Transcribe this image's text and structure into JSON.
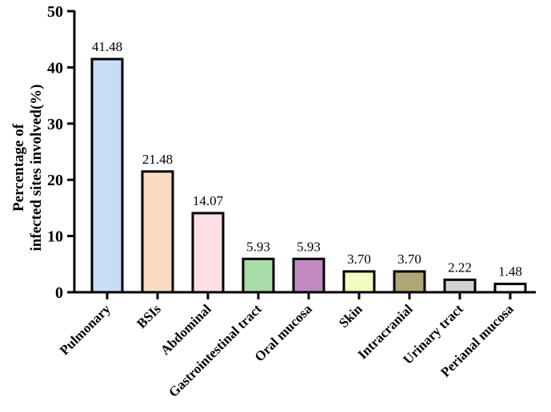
{
  "chart_data": {
    "type": "bar",
    "title": "",
    "xlabel": "",
    "ylabel_lines": [
      "Percentage of",
      "infected sites involved(%)"
    ],
    "ylim": [
      0,
      50
    ],
    "yticks": [
      0,
      10,
      20,
      30,
      40,
      50
    ],
    "categories": [
      "Pulmonary",
      "BSIs",
      "Abdominal",
      "Gastrointestinal tract",
      "Oral mucosa",
      "Skin",
      "Intracranial",
      "Urinary tract",
      "Perianal mucosa"
    ],
    "values": [
      41.48,
      21.48,
      14.07,
      5.93,
      5.93,
      3.7,
      3.7,
      2.22,
      1.48
    ],
    "value_labels": [
      "41.48",
      "21.48",
      "14.07",
      "5.93",
      "5.93",
      "3.70",
      "3.70",
      "2.22",
      "1.48"
    ],
    "colors": [
      "#c9dcf6",
      "#fbdcc0",
      "#fde0e3",
      "#a8dca8",
      "#c08bc3",
      "#f4fbc2",
      "#b0a574",
      "#d3d3d3",
      "#ffffff"
    ]
  }
}
